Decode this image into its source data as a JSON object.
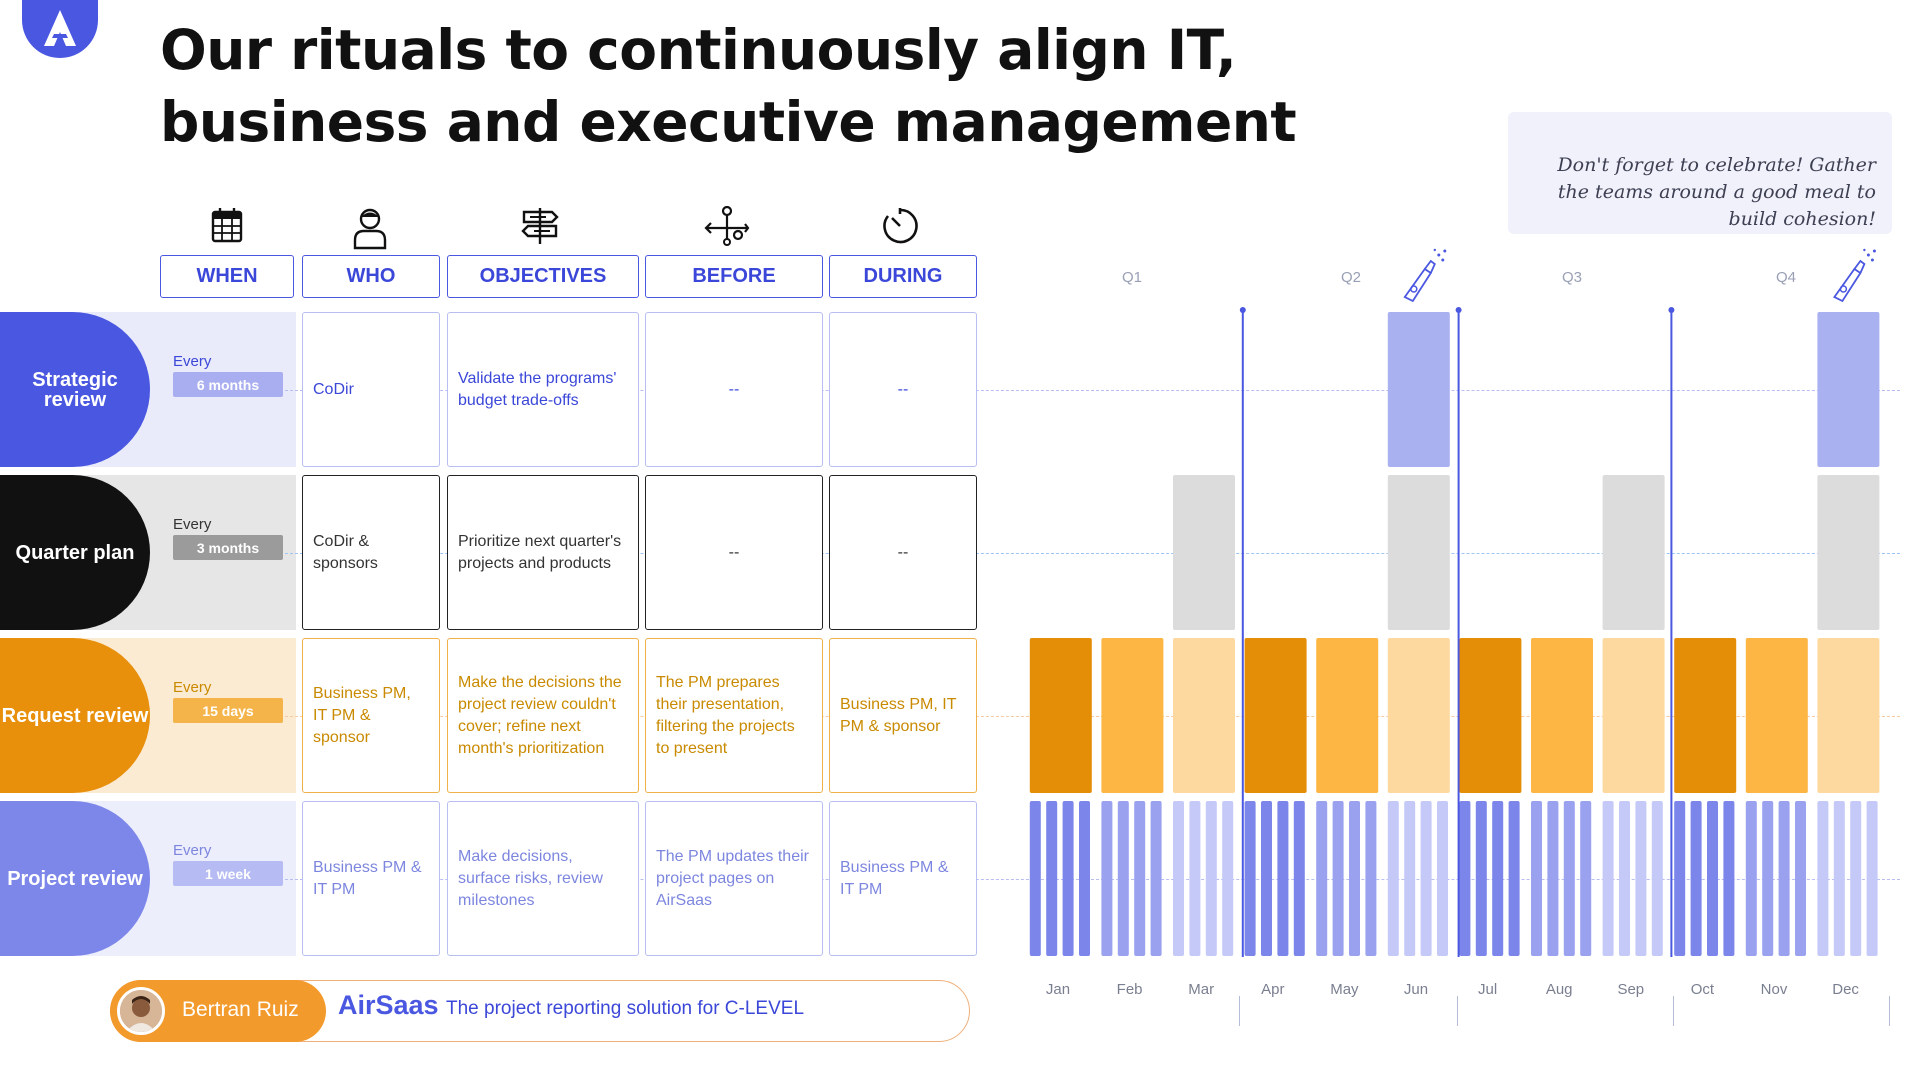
{
  "title": "Our rituals to continuously align IT, business and executive management",
  "note": "Don't forget to celebrate! Gather the teams around a good meal to build cohesion!",
  "headers": {
    "when": "WHEN",
    "who": "WHO",
    "objectives": "OBJECTIVES",
    "before": "BEFORE",
    "during": "DURING"
  },
  "icons": {
    "when": "calendar-icon",
    "who": "person-icon",
    "objectives": "signpost-icon",
    "before": "flow-icon",
    "during": "stopwatch-icon",
    "celebrate": "champagne-icon"
  },
  "rows": [
    {
      "label": "Strategic review",
      "every": "Every",
      "frequency": "6 months",
      "who": "CoDir",
      "objectives": "Validate the programs' budget trade-offs",
      "before": "--",
      "during": "--",
      "color": "#4a57e0",
      "light": "#e9ebfb",
      "pill": "#a8aef0",
      "text": "#3b47d8",
      "border": "#b9bef2"
    },
    {
      "label": "Quarter plan",
      "every": "Every",
      "frequency": "3 months",
      "who": "CoDir & sponsors",
      "objectives": "Prioritize next quarter's projects and products",
      "before": "--",
      "during": "--",
      "color": "#111111",
      "light": "#e6e6e6",
      "pill": "#9b9b9b",
      "text": "#333333",
      "border": "#222222"
    },
    {
      "label": "Request review",
      "every": "Every",
      "frequency": "15 days",
      "who": "Business PM, IT PM & sponsor",
      "objectives": "Make the decisions the project review couldn't cover; refine next month's prioritization",
      "before": "The PM prepares their presentation, filtering the projects to present",
      "during": "Business PM, IT PM & sponsor",
      "color": "#e88f0b",
      "light": "#fcebd3",
      "pill": "#f5b449",
      "text": "#c98a00",
      "border": "#f0b04a"
    },
    {
      "label": "Project review",
      "every": "Every",
      "frequency": "1 week",
      "who": "Business PM & IT PM",
      "objectives": "Make decisions, surface risks, review milestones",
      "before": "The PM updates their project pages on AirSaas",
      "during": "Business PM & IT PM",
      "color": "#7d87ea",
      "light": "#eceefc",
      "pill": "#b6bbf3",
      "text": "#7d86df",
      "border": "#b9bef2"
    }
  ],
  "chart_data": {
    "type": "timeline",
    "quarters": [
      "Q1",
      "Q2",
      "Q3",
      "Q4"
    ],
    "months": [
      "Jan",
      "Feb",
      "Mar",
      "Apr",
      "May",
      "Jun",
      "Jul",
      "Aug",
      "Sep",
      "Oct",
      "Nov",
      "Dec"
    ],
    "series": [
      {
        "ritual": "Strategic review",
        "months": [
          6,
          12
        ],
        "color": "#aab1f1"
      },
      {
        "ritual": "Quarter plan",
        "months": [
          3,
          6,
          9,
          12
        ],
        "color": "#dcdcdc"
      },
      {
        "ritual": "Request review",
        "months": [
          1,
          2,
          3,
          4,
          5,
          6,
          7,
          8,
          9,
          10,
          11,
          12
        ],
        "colors": [
          "#e48e08",
          "#fdb644",
          "#fdd99f"
        ]
      },
      {
        "ritual": "Project review",
        "weeks_per_month": 4,
        "colors": [
          "#7b85ea",
          "#9aa2f0",
          "#c5c9f7"
        ]
      }
    ],
    "quarter_boundaries": [
      3,
      6,
      9
    ]
  },
  "footer": {
    "author": "Bertran Ruiz",
    "brand": "AirSaas",
    "tagline": "The project reporting solution for C-LEVEL"
  }
}
